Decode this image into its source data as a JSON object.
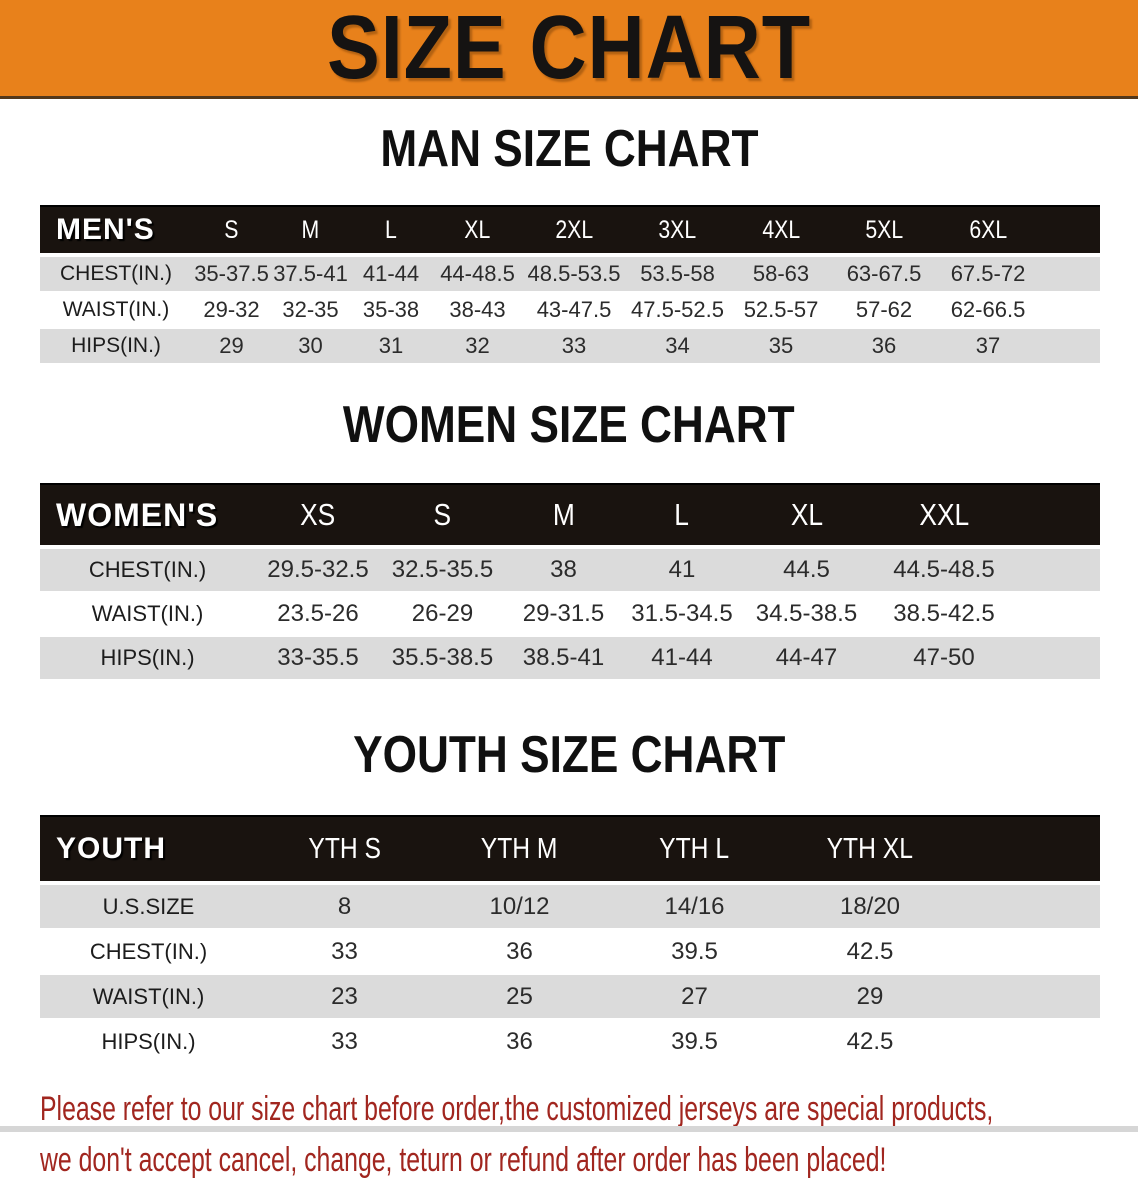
{
  "banner": {
    "title": "SIZE CHART"
  },
  "colors": {
    "banner_bg": "#E8811B",
    "table_header_bg": "#19130F",
    "row_gray": "#DBDBDB",
    "row_white": "#FFFFFF",
    "footer_red": "#A1261F",
    "heading_black": "#101010"
  },
  "sections": {
    "men": {
      "heading": "MAN SIZE CHART",
      "corner": "MEN'S",
      "columns": [
        "S",
        "M",
        "L",
        "XL",
        "2XL",
        "3XL",
        "4XL",
        "5XL",
        "6XL"
      ],
      "rows": [
        {
          "label": "CHEST(IN.)",
          "values": [
            "35-37.5",
            "37.5-41",
            "41-44",
            "44-48.5",
            "48.5-53.5",
            "53.5-58",
            "58-63",
            "63-67.5",
            "67.5-72"
          ]
        },
        {
          "label": "WAIST(IN.)",
          "values": [
            "29-32",
            "32-35",
            "35-38",
            "38-43",
            "43-47.5",
            "47.5-52.5",
            "52.5-57",
            "57-62",
            "62-66.5"
          ]
        },
        {
          "label": "HIPS(IN.)",
          "values": [
            "29",
            "30",
            "31",
            "32",
            "33",
            "34",
            "35",
            "36",
            "37"
          ]
        }
      ]
    },
    "women": {
      "heading": "WOMEN SIZE CHART",
      "corner": "WOMEN'S",
      "columns": [
        "XS",
        "S",
        "M",
        "L",
        "XL",
        "XXL"
      ],
      "rows": [
        {
          "label": "CHEST(IN.)",
          "values": [
            "29.5-32.5",
            "32.5-35.5",
            "38",
            "41",
            "44.5",
            "44.5-48.5"
          ]
        },
        {
          "label": "WAIST(IN.)",
          "values": [
            "23.5-26",
            "26-29",
            "29-31.5",
            "31.5-34.5",
            "34.5-38.5",
            "38.5-42.5"
          ]
        },
        {
          "label": "HIPS(IN.)",
          "values": [
            "33-35.5",
            "35.5-38.5",
            "38.5-41",
            "41-44",
            "44-47",
            "47-50"
          ]
        }
      ]
    },
    "youth": {
      "heading": "YOUTH SIZE CHART",
      "corner": "YOUTH",
      "columns": [
        "YTH S",
        "YTH M",
        "YTH L",
        "YTH XL"
      ],
      "rows": [
        {
          "label": "U.S.SIZE",
          "values": [
            "8",
            "10/12",
            "14/16",
            "18/20"
          ]
        },
        {
          "label": "CHEST(IN.)",
          "values": [
            "33",
            "36",
            "39.5",
            "42.5"
          ]
        },
        {
          "label": "WAIST(IN.)",
          "values": [
            "23",
            "25",
            "27",
            "29"
          ]
        },
        {
          "label": "HIPS(IN.)",
          "values": [
            "33",
            "36",
            "39.5",
            "42.5"
          ]
        }
      ]
    }
  },
  "footer": {
    "line1": "Please refer to our size chart before order,the customized jerseys are special products,",
    "line2": "we don't accept cancel, change, teturn or refund after order has been placed!"
  }
}
